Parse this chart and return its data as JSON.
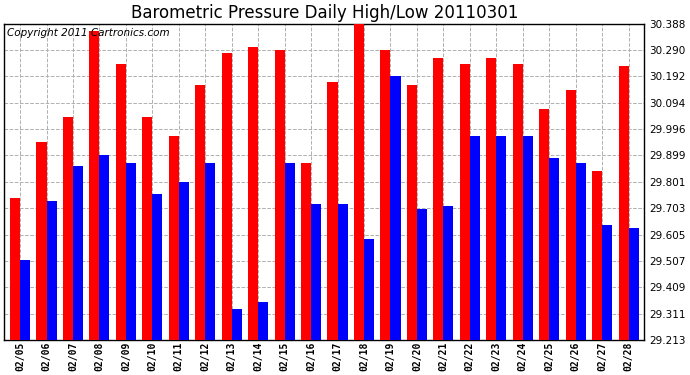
{
  "title": "Barometric Pressure Daily High/Low 20110301",
  "copyright": "Copyright 2011 Cartronics.com",
  "dates": [
    "02/05",
    "02/06",
    "02/07",
    "02/08",
    "02/09",
    "02/10",
    "02/11",
    "02/12",
    "02/13",
    "02/14",
    "02/15",
    "02/16",
    "02/17",
    "02/18",
    "02/19",
    "02/20",
    "02/21",
    "02/22",
    "02/23",
    "02/24",
    "02/25",
    "02/26",
    "02/27",
    "02/28"
  ],
  "highs": [
    29.74,
    29.95,
    30.04,
    30.36,
    30.24,
    30.04,
    29.97,
    30.16,
    30.28,
    30.3,
    30.29,
    29.87,
    30.17,
    30.42,
    30.29,
    30.16,
    30.26,
    30.24,
    30.26,
    30.24,
    30.07,
    30.14,
    29.84,
    30.23
  ],
  "lows": [
    29.51,
    29.73,
    29.86,
    29.9,
    29.87,
    29.755,
    29.8,
    29.87,
    29.33,
    29.355,
    29.87,
    29.72,
    29.72,
    29.59,
    30.195,
    29.7,
    29.71,
    29.97,
    29.97,
    29.97,
    29.89,
    29.87,
    29.64,
    29.63
  ],
  "ylim_min": 29.213,
  "ylim_max": 30.388,
  "yticks": [
    29.213,
    29.311,
    29.409,
    29.507,
    29.605,
    29.703,
    29.801,
    29.899,
    29.996,
    30.094,
    30.192,
    30.29,
    30.388
  ],
  "high_color": "#ff0000",
  "low_color": "#0000ff",
  "bg_color": "#ffffff",
  "grid_color": "#b0b0b0",
  "title_fontsize": 12,
  "copyright_fontsize": 7.5,
  "bar_width": 0.38,
  "figwidth": 6.9,
  "figheight": 3.75,
  "dpi": 100
}
